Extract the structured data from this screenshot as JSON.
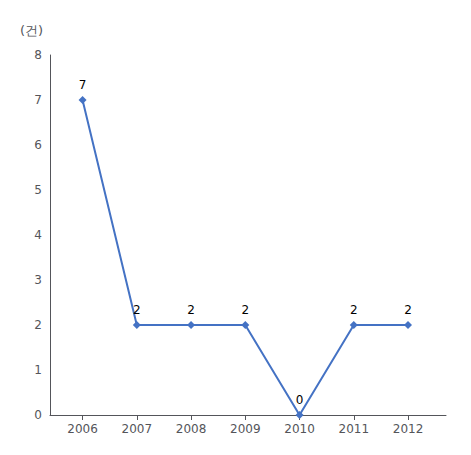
{
  "chart_data": {
    "type": "line",
    "ylabel": "(건)",
    "x": [
      2006,
      2007,
      2008,
      2009,
      2010,
      2011,
      2012
    ],
    "values": [
      7,
      2,
      2,
      2,
      0,
      2,
      2
    ],
    "color": "#4472c4",
    "marker": "diamond",
    "xlim": [
      2005.4,
      2012.7
    ],
    "xticks": [
      2006,
      2007,
      2008,
      2009,
      2010,
      2011,
      2012
    ],
    "ylim": [
      0,
      8
    ],
    "yticks": [
      0,
      1,
      2,
      3,
      4,
      5,
      6,
      7,
      8
    ],
    "grid": false,
    "data_labels": true
  }
}
